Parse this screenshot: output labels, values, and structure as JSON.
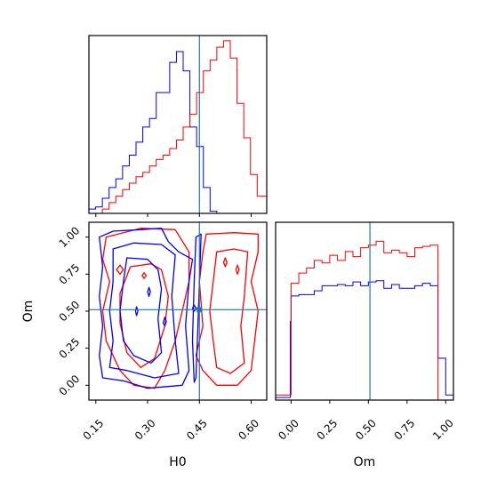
{
  "chart_data": {
    "type": "corner",
    "parameters": [
      "H0",
      "Om"
    ],
    "truth": {
      "H0": 0.45,
      "Om": 0.51
    },
    "colors": {
      "series_a": "#0000ff",
      "series_b": "#ff0000",
      "truth": "#1f77b4"
    },
    "hist_H0": {
      "xlim": [
        0.13,
        0.645
      ],
      "bin_edges": [
        0.13,
        0.1495,
        0.169,
        0.1885,
        0.208,
        0.2275,
        0.247,
        0.2665,
        0.286,
        0.3055,
        0.325,
        0.3445,
        0.364,
        0.3835,
        0.403,
        0.4225,
        0.442,
        0.4615,
        0.481,
        0.5005,
        0.52,
        0.5395,
        0.559,
        0.5785,
        0.598,
        0.6175,
        0.645
      ],
      "series_a_counts": [
        2,
        3,
        7,
        12,
        16,
        22,
        27,
        33,
        40,
        44,
        56,
        56,
        70,
        75,
        66,
        40,
        31,
        12,
        1,
        0,
        0,
        0,
        0,
        0,
        0,
        0
      ],
      "series_b_counts": [
        0,
        0,
        2,
        5,
        8,
        11,
        14,
        17,
        19,
        22,
        25,
        27,
        30,
        34,
        40,
        46,
        56,
        66,
        71,
        77,
        80,
        72,
        51,
        35,
        18,
        8
      ]
    },
    "hist_Om": {
      "xlim": [
        -0.1,
        1.05
      ],
      "bin_edges": [
        -0.1,
        -0.005,
        0.0,
        0.05,
        0.1,
        0.15,
        0.2,
        0.25,
        0.3,
        0.35,
        0.4,
        0.45,
        0.5,
        0.55,
        0.6,
        0.65,
        0.7,
        0.75,
        0.8,
        0.85,
        0.9,
        0.95,
        1.0,
        1.05
      ],
      "series_a_counts": [
        2,
        62,
        82,
        83,
        83,
        86,
        90,
        90,
        91,
        90,
        93,
        90,
        93,
        94,
        88,
        91,
        88,
        88,
        90,
        92,
        90,
        33,
        4
      ],
      "series_b_counts": [
        4,
        4,
        92,
        100,
        104,
        110,
        108,
        114,
        110,
        117,
        113,
        120,
        122,
        125,
        116,
        118,
        116,
        113,
        120,
        121,
        122,
        0,
        0
      ]
    },
    "joint": {
      "xlim": [
        0.13,
        0.645
      ],
      "ylim": [
        -0.1,
        1.1
      ],
      "series_a_contours": [
        [
          [
            0.43,
            0.85
          ],
          [
            0.39,
            0.9
          ],
          [
            0.36,
            0.97
          ],
          [
            0.34,
            1.06
          ],
          [
            0.28,
            1.05
          ],
          [
            0.2,
            1.04
          ],
          [
            0.16,
            1.0
          ],
          [
            0.17,
            0.8
          ],
          [
            0.16,
            0.6
          ],
          [
            0.17,
            0.4
          ],
          [
            0.16,
            0.2
          ],
          [
            0.17,
            0.05
          ],
          [
            0.23,
            0.03
          ],
          [
            0.3,
            -0.02
          ],
          [
            0.4,
            0.0
          ],
          [
            0.42,
            0.1
          ],
          [
            0.41,
            0.4
          ],
          [
            0.42,
            0.7
          ],
          [
            0.43,
            0.85
          ]
        ],
        [
          [
            0.38,
            0.88
          ],
          [
            0.34,
            0.95
          ],
          [
            0.26,
            0.96
          ],
          [
            0.2,
            0.92
          ],
          [
            0.2,
            0.7
          ],
          [
            0.19,
            0.5
          ],
          [
            0.2,
            0.3
          ],
          [
            0.19,
            0.12
          ],
          [
            0.24,
            0.1
          ],
          [
            0.32,
            0.05
          ],
          [
            0.39,
            0.08
          ],
          [
            0.38,
            0.3
          ],
          [
            0.37,
            0.6
          ],
          [
            0.38,
            0.88
          ]
        ],
        [
          [
            0.33,
            0.78
          ],
          [
            0.3,
            0.85
          ],
          [
            0.24,
            0.86
          ],
          [
            0.23,
            0.7
          ],
          [
            0.22,
            0.5
          ],
          [
            0.23,
            0.3
          ],
          [
            0.26,
            0.2
          ],
          [
            0.31,
            0.15
          ],
          [
            0.34,
            0.22
          ],
          [
            0.33,
            0.45
          ],
          [
            0.34,
            0.65
          ],
          [
            0.33,
            0.78
          ]
        ],
        [
          [
            0.455,
            1.02
          ],
          [
            0.45,
            0.7
          ],
          [
            0.445,
            0.35
          ],
          [
            0.44,
            0.05
          ],
          [
            0.435,
            0.02
          ],
          [
            0.43,
            0.3
          ],
          [
            0.435,
            0.7
          ],
          [
            0.44,
            1.0
          ],
          [
            0.455,
            1.02
          ]
        ],
        [
          [
            0.265,
            0.5
          ],
          [
            0.268,
            0.47
          ],
          [
            0.272,
            0.5
          ],
          [
            0.268,
            0.53
          ],
          [
            0.265,
            0.5
          ]
        ],
        [
          [
            0.345,
            0.42
          ],
          [
            0.35,
            0.4
          ],
          [
            0.354,
            0.43
          ],
          [
            0.35,
            0.46
          ],
          [
            0.345,
            0.42
          ]
        ],
        [
          [
            0.3,
            0.63
          ],
          [
            0.304,
            0.6
          ],
          [
            0.308,
            0.63
          ],
          [
            0.304,
            0.66
          ],
          [
            0.3,
            0.63
          ]
        ],
        [
          [
            0.43,
            0.52
          ],
          [
            0.435,
            0.5
          ],
          [
            0.44,
            0.52
          ],
          [
            0.435,
            0.54
          ],
          [
            0.43,
            0.52
          ]
        ]
      ],
      "series_b_contours": [
        [
          [
            0.62,
            1.02
          ],
          [
            0.55,
            1.03
          ],
          [
            0.47,
            1.02
          ],
          [
            0.46,
            0.9
          ],
          [
            0.45,
            0.7
          ],
          [
            0.46,
            0.4
          ],
          [
            0.44,
            0.2
          ],
          [
            0.46,
            0.1
          ],
          [
            0.5,
            0.0
          ],
          [
            0.56,
            0.0
          ],
          [
            0.6,
            0.1
          ],
          [
            0.61,
            0.3
          ],
          [
            0.62,
            0.5
          ],
          [
            0.6,
            0.7
          ],
          [
            0.62,
            0.9
          ],
          [
            0.62,
            1.02
          ]
        ],
        [
          [
            0.59,
            0.9
          ],
          [
            0.55,
            0.92
          ],
          [
            0.5,
            0.9
          ],
          [
            0.49,
            0.7
          ],
          [
            0.48,
            0.5
          ],
          [
            0.49,
            0.3
          ],
          [
            0.5,
            0.12
          ],
          [
            0.54,
            0.08
          ],
          [
            0.58,
            0.15
          ],
          [
            0.57,
            0.4
          ],
          [
            0.58,
            0.6
          ],
          [
            0.59,
            0.9
          ]
        ],
        [
          [
            0.28,
            1.06
          ],
          [
            0.23,
            1.03
          ],
          [
            0.18,
            1.0
          ],
          [
            0.17,
            0.85
          ],
          [
            0.19,
            0.7
          ],
          [
            0.17,
            0.5
          ],
          [
            0.18,
            0.3
          ],
          [
            0.22,
            0.1
          ],
          [
            0.26,
            0.0
          ],
          [
            0.32,
            -0.02
          ],
          [
            0.35,
            0.1
          ],
          [
            0.38,
            0.3
          ],
          [
            0.4,
            0.5
          ],
          [
            0.42,
            0.7
          ],
          [
            0.42,
            0.9
          ],
          [
            0.38,
            1.05
          ],
          [
            0.28,
            1.06
          ]
        ],
        [
          [
            0.31,
            0.82
          ],
          [
            0.25,
            0.8
          ],
          [
            0.22,
            0.62
          ],
          [
            0.22,
            0.42
          ],
          [
            0.24,
            0.22
          ],
          [
            0.28,
            0.12
          ],
          [
            0.32,
            0.18
          ],
          [
            0.35,
            0.4
          ],
          [
            0.36,
            0.6
          ],
          [
            0.34,
            0.78
          ],
          [
            0.31,
            0.82
          ]
        ],
        [
          [
            0.52,
            0.83
          ],
          [
            0.525,
            0.8
          ],
          [
            0.53,
            0.83
          ],
          [
            0.525,
            0.86
          ],
          [
            0.52,
            0.83
          ]
        ],
        [
          [
            0.556,
            0.78
          ],
          [
            0.56,
            0.75
          ],
          [
            0.565,
            0.78
          ],
          [
            0.56,
            0.81
          ],
          [
            0.556,
            0.78
          ]
        ],
        [
          [
            0.284,
            0.74
          ],
          [
            0.29,
            0.72
          ],
          [
            0.296,
            0.74
          ],
          [
            0.29,
            0.76
          ],
          [
            0.284,
            0.74
          ]
        ],
        [
          [
            0.21,
            0.78
          ],
          [
            0.22,
            0.75
          ],
          [
            0.23,
            0.78
          ],
          [
            0.22,
            0.81
          ],
          [
            0.21,
            0.78
          ]
        ]
      ]
    },
    "ticks_H0": [
      "0.15",
      "0.30",
      "0.45",
      "0.60"
    ],
    "ticks_H0_values": [
      0.15,
      0.3,
      0.45,
      0.6
    ],
    "ticks_Om_joint": [
      "0.00",
      "0.25",
      "0.50",
      "0.75",
      "1.00"
    ],
    "ticks_Om_joint_values": [
      0.0,
      0.25,
      0.5,
      0.75,
      1.0
    ],
    "ticks_Om_hist": [
      "0.00",
      "0.25",
      "0.50",
      "0.75",
      "1.00"
    ],
    "ticks_Om_hist_values": [
      0.0,
      0.25,
      0.5,
      0.75,
      1.0
    ],
    "xlabel_left": "H0",
    "xlabel_right": "Om",
    "ylabel_joint": "Om"
  }
}
